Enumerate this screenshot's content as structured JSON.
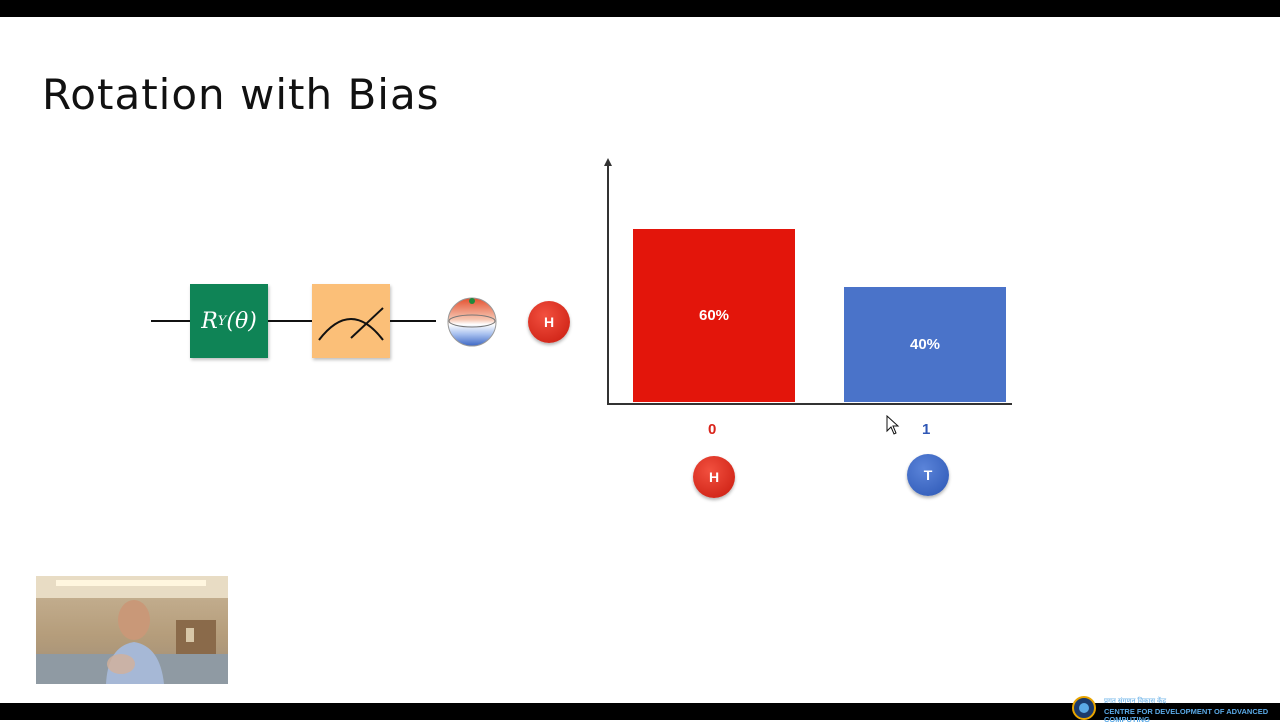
{
  "slide": {
    "title": "Rotation with Bias"
  },
  "circuit": {
    "ry_gate": {
      "symbol": "R",
      "subscript": "Y",
      "argument": "(θ)"
    },
    "outcome_coin": {
      "label": "H"
    }
  },
  "chart_data": {
    "type": "bar",
    "categories": [
      "0",
      "1"
    ],
    "values": [
      60,
      40
    ],
    "data_labels": [
      "60%",
      "40%"
    ],
    "colors": [
      "#e3150b",
      "#4a73c9"
    ],
    "category_colors": [
      "#d9231a",
      "#2f57b5"
    ],
    "coin_labels": [
      "H",
      "T"
    ],
    "ylim": [
      0,
      100
    ],
    "grid": false
  },
  "footer": {
    "logo_hindi": "प्रगत संगणन विकास केंद्र",
    "logo_english": "CENTRE FOR DEVELOPMENT OF ADVANCED COMPUTING"
  }
}
